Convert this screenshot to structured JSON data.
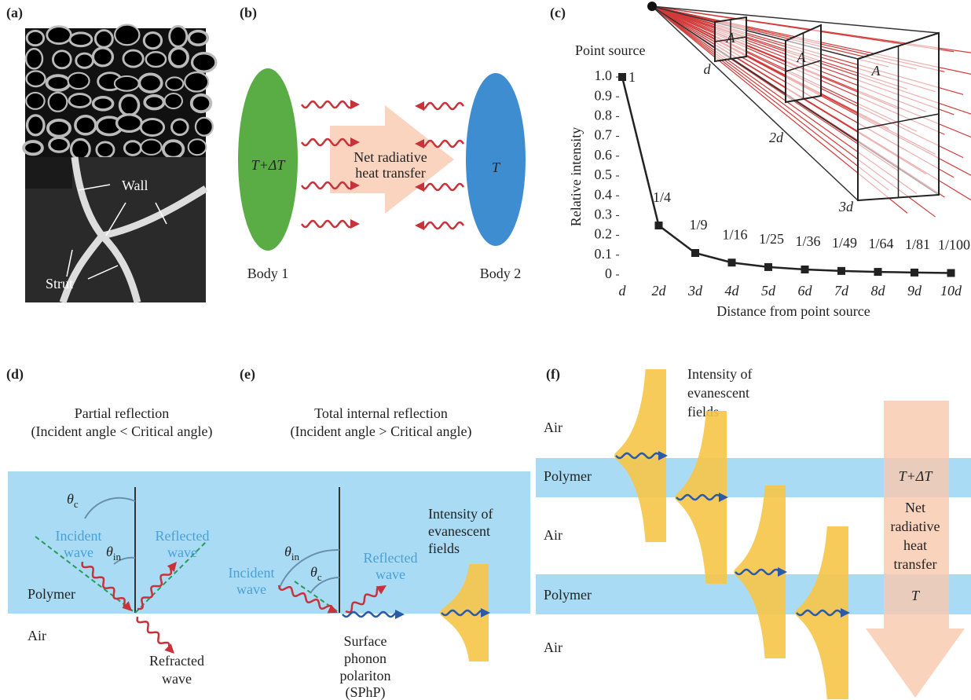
{
  "panels": {
    "a": {
      "label": "(a)",
      "wall": "Wall",
      "strut": "Strut"
    },
    "b": {
      "label": "(b)",
      "hot": "T+ΔT",
      "cold": "T",
      "transfer": [
        "Net radiative",
        "heat transfer"
      ],
      "body1": "Body 1",
      "body2": "Body 2"
    },
    "c": {
      "label": "(c)",
      "areas": [
        "A",
        "A",
        "A"
      ],
      "distances": [
        "d",
        "2d",
        "3d"
      ]
    },
    "d": {
      "label": "(d)",
      "title": [
        "Partial reflection",
        "(Incident angle < Critical angle)"
      ],
      "theta_c": "θc",
      "theta_in": "θin",
      "incident": [
        "Incident",
        "wave"
      ],
      "reflected": [
        "Reflected",
        "wave"
      ],
      "polymer": "Polymer",
      "air": "Air",
      "refracted": [
        "Refracted",
        "wave"
      ]
    },
    "e": {
      "label": "(e)",
      "title": [
        "Total internal reflection",
        "(Incident angle > Critical angle)"
      ],
      "theta_in": "θin",
      "theta_c": "θc",
      "incident": [
        "Incident",
        "wave"
      ],
      "reflected": [
        "Reflected",
        "wave"
      ],
      "intensity": [
        "Intensity of",
        "evanescent",
        "fields"
      ],
      "sphp": [
        "Surface",
        "phonon",
        "polariton",
        "(SPhP)"
      ]
    },
    "f": {
      "label": "(f)",
      "intensity": [
        "Intensity of",
        "evanescent",
        "fields"
      ],
      "layers": [
        "Air",
        "Polymer",
        "Air",
        "Polymer",
        "Air"
      ],
      "hot": "T+ΔT",
      "transfer": [
        "Net",
        "radiative",
        "heat",
        "transfer"
      ],
      "cold": "T"
    }
  },
  "chart_data": {
    "type": "line",
    "annotation": "Point source",
    "x_label": "Distance from point source",
    "y_label": "Relative intensity",
    "categories": [
      "d",
      "2d",
      "3d",
      "4d",
      "5d",
      "6d",
      "7d",
      "8d",
      "9d",
      "10d"
    ],
    "values": [
      1,
      0.25,
      0.1111,
      0.0625,
      0.04,
      0.0278,
      0.0204,
      0.0156,
      0.0123,
      0.01
    ],
    "value_labels": [
      "1",
      "1/4",
      "1/9",
      "1/16",
      "1/25",
      "1/36",
      "1/49",
      "1/64",
      "1/81",
      "1/100"
    ],
    "color": "#222222",
    "ylim": [
      0,
      1
    ],
    "yticks": [
      0,
      0.1,
      0.2,
      0.3,
      0.4,
      0.5,
      0.6,
      0.7,
      0.8,
      0.9,
      {
        "value": 1,
        "label": "1.0"
      }
    ]
  }
}
